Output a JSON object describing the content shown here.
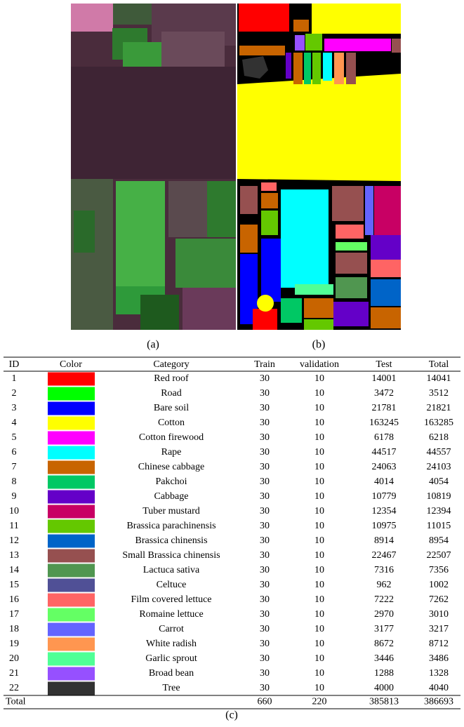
{
  "captions": {
    "a": "(a)",
    "b": "(b)",
    "c": "(c)"
  },
  "table": {
    "header": [
      "ID",
      "Color",
      "Category",
      "Train",
      "validation",
      "Test",
      "Total"
    ],
    "rows": [
      {
        "id": 1,
        "color": "#ff0000",
        "category": "Red roof",
        "train": 30,
        "validation": 10,
        "test": 14001,
        "total": 14041
      },
      {
        "id": 2,
        "color": "#00ff00",
        "category": "Road",
        "train": 30,
        "validation": 10,
        "test": 3472,
        "total": 3512
      },
      {
        "id": 3,
        "color": "#0000ff",
        "category": "Bare soil",
        "train": 30,
        "validation": 10,
        "test": 21781,
        "total": 21821
      },
      {
        "id": 4,
        "color": "#ffff00",
        "category": "Cotton",
        "train": 30,
        "validation": 10,
        "test": 163245,
        "total": 163285
      },
      {
        "id": 5,
        "color": "#ff00ff",
        "category": "Cotton firewood",
        "train": 30,
        "validation": 10,
        "test": 6178,
        "total": 6218
      },
      {
        "id": 6,
        "color": "#00ffff",
        "category": "Rape",
        "train": 30,
        "validation": 10,
        "test": 44517,
        "total": 44557
      },
      {
        "id": 7,
        "color": "#c86400",
        "category": "Chinese cabbage",
        "train": 30,
        "validation": 10,
        "test": 24063,
        "total": 24103
      },
      {
        "id": 8,
        "color": "#00c864",
        "category": "Pakchoi",
        "train": 30,
        "validation": 10,
        "test": 4014,
        "total": 4054
      },
      {
        "id": 9,
        "color": "#6400c8",
        "category": "Cabbage",
        "train": 30,
        "validation": 10,
        "test": 10779,
        "total": 10819
      },
      {
        "id": 10,
        "color": "#c80064",
        "category": "Tuber mustard",
        "train": 30,
        "validation": 10,
        "test": 12354,
        "total": 12394
      },
      {
        "id": 11,
        "color": "#64c800",
        "category": "Brassica parachinensis",
        "train": 30,
        "validation": 10,
        "test": 10975,
        "total": 11015
      },
      {
        "id": 12,
        "color": "#0064c8",
        "category": "Brassica chinensis",
        "train": 30,
        "validation": 10,
        "test": 8914,
        "total": 8954
      },
      {
        "id": 13,
        "color": "#965050",
        "category": "Small Brassica chinensis",
        "train": 30,
        "validation": 10,
        "test": 22467,
        "total": 22507
      },
      {
        "id": 14,
        "color": "#509650",
        "category": "Lactuca sativa",
        "train": 30,
        "validation": 10,
        "test": 7316,
        "total": 7356
      },
      {
        "id": 15,
        "color": "#505096",
        "category": "Celtuce",
        "train": 30,
        "validation": 10,
        "test": 962,
        "total": 1002
      },
      {
        "id": 16,
        "color": "#ff6464",
        "category": "Film covered lettuce",
        "train": 30,
        "validation": 10,
        "test": 7222,
        "total": 7262
      },
      {
        "id": 17,
        "color": "#64ff64",
        "category": "Romaine lettuce",
        "train": 30,
        "validation": 10,
        "test": 2970,
        "total": 3010
      },
      {
        "id": 18,
        "color": "#6464ff",
        "category": "Carrot",
        "train": 30,
        "validation": 10,
        "test": 3177,
        "total": 3217
      },
      {
        "id": 19,
        "color": "#ff9650",
        "category": "White radish",
        "train": 30,
        "validation": 10,
        "test": 8672,
        "total": 8712
      },
      {
        "id": 20,
        "color": "#50ff96",
        "category": "Garlic sprout",
        "train": 30,
        "validation": 10,
        "test": 3446,
        "total": 3486
      },
      {
        "id": 21,
        "color": "#9650ff",
        "category": "Broad bean",
        "train": 30,
        "validation": 10,
        "test": 1288,
        "total": 1328
      },
      {
        "id": 22,
        "color": "#323232",
        "category": "Tree",
        "train": 30,
        "validation": 10,
        "test": 4000,
        "total": 4040
      }
    ],
    "footer": {
      "label": "Total",
      "train": 660,
      "validation": 220,
      "test": 385813,
      "total": 386693
    }
  }
}
